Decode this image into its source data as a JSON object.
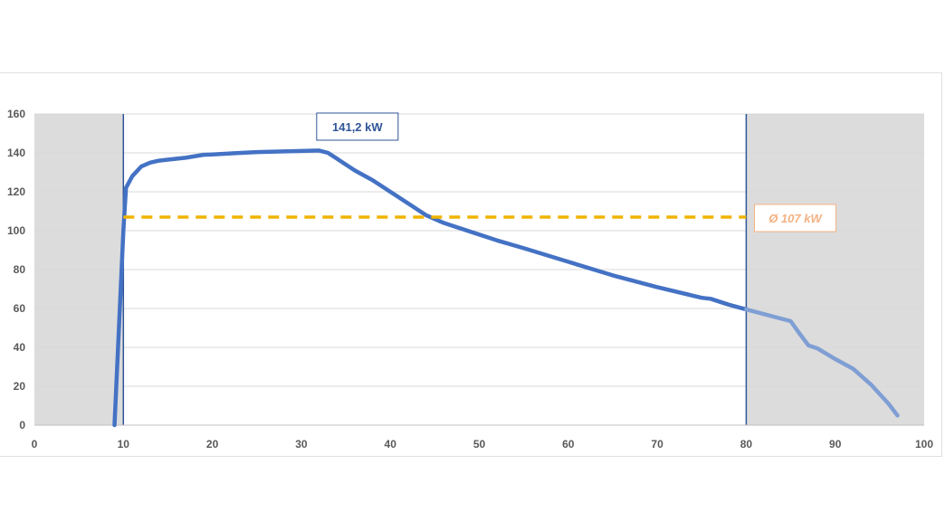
{
  "chart_data": {
    "type": "line",
    "title": "",
    "xlabel": "",
    "ylabel": "",
    "xlim": [
      0,
      100
    ],
    "ylim": [
      0,
      160
    ],
    "x_ticks": [
      0,
      10,
      20,
      30,
      40,
      50,
      60,
      70,
      80,
      90,
      100
    ],
    "y_ticks": [
      0,
      20,
      40,
      60,
      80,
      100,
      120,
      140,
      160
    ],
    "grid": "horizontal",
    "series": [
      {
        "color": "#4472c4",
        "x": [
          9,
          10,
          10.3,
          11,
          12,
          13,
          14,
          15,
          17,
          19,
          20,
          25,
          30,
          31,
          32,
          33,
          34,
          35,
          36,
          38,
          40,
          42,
          44,
          46,
          50,
          52,
          55,
          60,
          65,
          70,
          75,
          76,
          78,
          80
        ],
        "y": [
          0,
          100,
          122,
          128,
          133,
          135,
          136,
          136.5,
          137.5,
          139,
          139.2,
          140.4,
          141,
          141.1,
          141.2,
          140,
          137,
          134,
          131,
          126,
          120,
          114,
          108,
          104,
          98,
          95,
          91,
          84,
          77,
          71,
          65.5,
          65,
          62,
          59.5
        ]
      },
      {
        "color": "#7f9fd4",
        "x": [
          80,
          85,
          86,
          87,
          88,
          90,
          92,
          94,
          96,
          97
        ],
        "y": [
          59.5,
          53.5,
          47,
          41,
          39.5,
          34,
          29,
          21,
          11,
          5
        ]
      }
    ],
    "shaded_regions": [
      {
        "x_from": 0,
        "x_to": 10,
        "color": "#dcdcdc"
      },
      {
        "x_from": 80,
        "x_to": 100,
        "color": "#dcdcdc"
      }
    ],
    "reference_lines": [
      {
        "orientation": "vertical",
        "x": 10,
        "color": "#2f5597"
      },
      {
        "orientation": "vertical",
        "x": 80,
        "color": "#2f5597"
      },
      {
        "orientation": "horizontal",
        "y": 107,
        "x_from": 10,
        "x_to": 80,
        "color": "#f0b400",
        "style": "dashed"
      }
    ],
    "annotations": [
      {
        "name": "max-label",
        "text": "141,2 kW",
        "x": 36.3,
        "y": 153.5,
        "color": "#2f5597"
      },
      {
        "name": "avg-label",
        "text": "Ø 107 kW",
        "x": 85.5,
        "y": 106.5,
        "color": "#f4b183"
      }
    ]
  }
}
